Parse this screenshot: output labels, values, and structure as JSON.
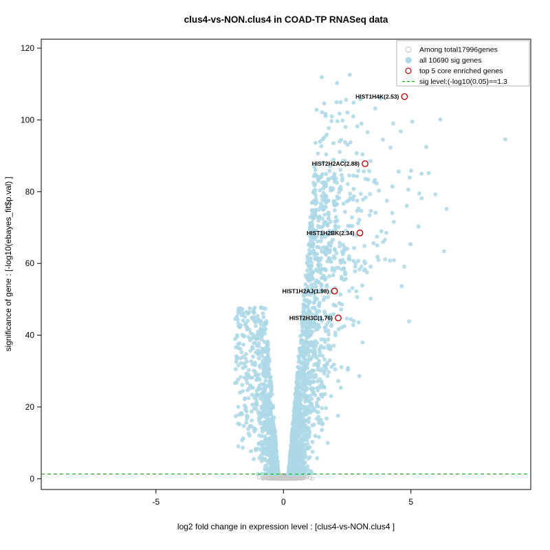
{
  "colors": {
    "sig_points": "#add8e6",
    "nonsig_points": "#c9c9c9",
    "enriched": "#c00000",
    "sig_line": "#00bb00",
    "axis": "#000000",
    "legend_border": "#b3b3b3"
  },
  "legend": {
    "items": [
      {
        "label": "Among total17996genes",
        "marker": "open-circle",
        "color": "#c9c9c9"
      },
      {
        "label": "all 10690 sig genes",
        "marker": "filled-circle",
        "color": "#add8e6"
      },
      {
        "label": "top 5 core enriched genes",
        "marker": "open-circle",
        "color": "#c00000"
      },
      {
        "label": "sig level:(-log10(0.05)==1.3",
        "marker": "dashed-line",
        "color": "#00bb00"
      }
    ]
  },
  "chart_data": {
    "type": "scatter",
    "title": "clus4-vs-NON.clus4 in COAD-TP RNASeq data",
    "xlabel": "log2 fold change in expression level : [clus4-vs-NON.clus4 ]",
    "ylabel": "significance of gene : [-log10(ebayes_fit$p.val) ]",
    "xlim": [
      -9.5,
      9.7
    ],
    "ylim": [
      -3,
      122.5
    ],
    "xticks": [
      -5,
      0,
      5
    ],
    "yticks": [
      0,
      20,
      40,
      60,
      80,
      100,
      120
    ],
    "grid": false,
    "legend_position": "top-right",
    "sig_line_y": 1.3,
    "total_genes": 17996,
    "sig_genes": 10690,
    "top_enriched_count": 5,
    "labeled_genes": [
      {
        "label": "HIST1H4K(2.53)",
        "x": 4.75,
        "y": 106.5
      },
      {
        "label": "HIST2H2AC(2.88)",
        "x": 3.2,
        "y": 87.8
      },
      {
        "label": "HIST1H2BK(2.34)",
        "x": 3.0,
        "y": 68.5
      },
      {
        "label": "HIST1H2AJ(1.98)",
        "x": 2.0,
        "y": 52.3
      },
      {
        "label": "HIST2H3C(1.76)",
        "x": 2.15,
        "y": 44.8
      }
    ],
    "outlier_points": [
      [
        1.5,
        111.9
      ],
      [
        2.6,
        112.6
      ],
      [
        5.9,
        112.8
      ],
      [
        2.1,
        110.3
      ],
      [
        2.75,
        104.8
      ],
      [
        3.6,
        103.2
      ],
      [
        1.9,
        101.0
      ],
      [
        5.05,
        99.5
      ],
      [
        4.3,
        99.0
      ],
      [
        2.9,
        98.2
      ],
      [
        4.6,
        96.8
      ],
      [
        3.3,
        96.6
      ],
      [
        1.6,
        95.1
      ],
      [
        3.9,
        94.5
      ],
      [
        2.2,
        94.0
      ],
      [
        8.7,
        94.6
      ],
      [
        4.2,
        92.3
      ],
      [
        5.6,
        92.5
      ],
      [
        3.1,
        90.4
      ],
      [
        2.4,
        88.6
      ],
      [
        6.15,
        100.1
      ],
      [
        6.4,
        75.2
      ],
      [
        6.3,
        63.4
      ],
      [
        5.3,
        70.3
      ],
      [
        4.9,
        80.6
      ],
      [
        5.7,
        85.2
      ]
    ],
    "cloud": {
      "seed": 20240613,
      "point_radius": 3,
      "nonsig": {
        "count": 620,
        "x_center": 0.05,
        "x_sd": 0.3,
        "y_max": 1.3
      },
      "left_wing": {
        "count": 850,
        "y_max": 46.5,
        "y_exp": 1.9,
        "inner0": 0.18,
        "inner_slope": 0.011,
        "spread0": 0.16,
        "spread_slope": 0.012,
        "x_cap": 1.9
      },
      "right_wing": {
        "count": 1950,
        "y_max": 85,
        "y_exp": 2.6,
        "inner0": 0.18,
        "inner_slope": 0.012,
        "spread0": 0.14,
        "spread_slope": 0.01,
        "x_cap": 6.8
      },
      "upper": {
        "count": 110,
        "y_min": 58,
        "y_range": 48,
        "x_cap": 6.2
      }
    }
  }
}
